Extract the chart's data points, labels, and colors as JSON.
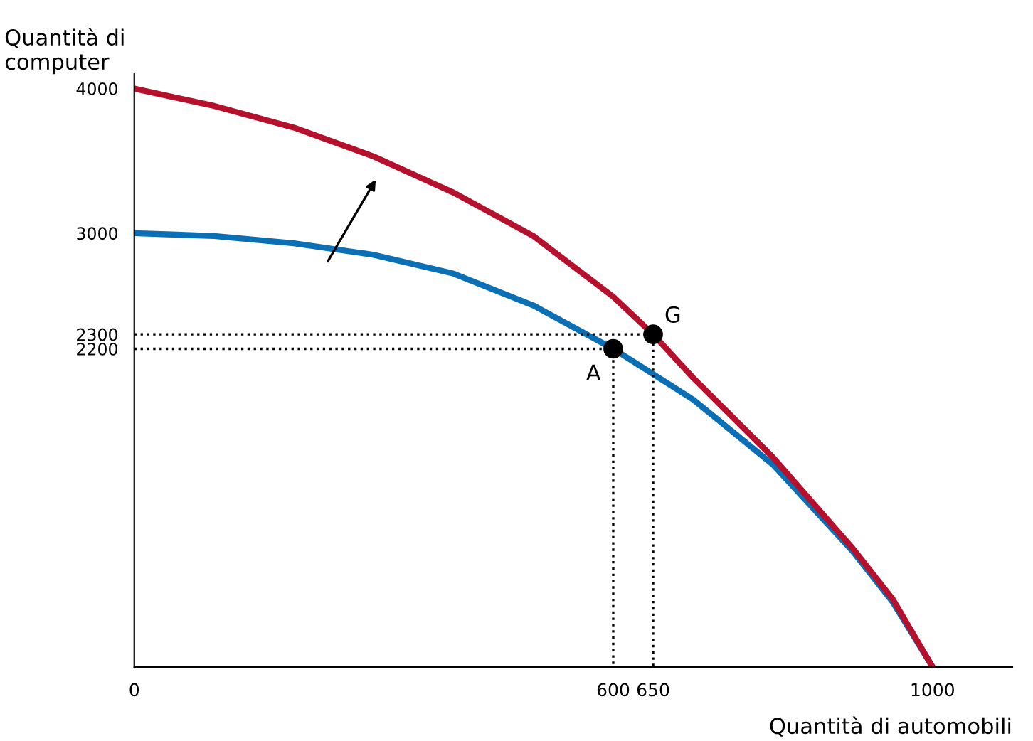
{
  "chart_data": {
    "type": "line",
    "xlabel": "Quantità di automobili",
    "ylabel": "Quantità di\ncomputer",
    "series": [
      {
        "color": "#0a6fb4",
        "x": [
          0,
          100,
          200,
          300,
          400,
          500,
          600,
          700,
          800,
          900,
          950,
          1000
        ],
        "values": [
          3000,
          2980,
          2930,
          2850,
          2720,
          2500,
          2200,
          1850,
          1400,
          800,
          450,
          0
        ]
      },
      {
        "color": "#b5102c",
        "x": [
          0,
          100,
          200,
          300,
          400,
          500,
          600,
          650,
          700,
          800,
          900,
          950,
          1000
        ],
        "values": [
          4000,
          3880,
          3730,
          3530,
          3280,
          2980,
          2560,
          2300,
          2000,
          1450,
          820,
          470,
          0
        ]
      },
      {
        "color": "#000000",
        "line_style": "dotted",
        "x": [
          0,
          600,
          600
        ],
        "values": [
          2200,
          2200,
          0
        ]
      },
      {
        "color": "#000000",
        "line_style": "dotted",
        "x": [
          0,
          650,
          650
        ],
        "values": [
          2300,
          2300,
          0
        ]
      },
      {
        "type": "scatter",
        "color": "#000000",
        "marker": "circle",
        "x": [
          600,
          650
        ],
        "values": [
          2200,
          2300
        ]
      }
    ],
    "annotations": [
      {
        "text": "A",
        "x": 600,
        "y": 2200
      },
      {
        "text": "G",
        "x": 650,
        "y": 2300
      }
    ],
    "xlim": [
      0,
      1100
    ],
    "ylim": [
      0,
      4100
    ],
    "xticks": [
      0,
      600,
      650,
      1000
    ],
    "yticks": [
      2200,
      2300,
      3000,
      4000
    ],
    "grid": false,
    "legend": false,
    "marker": "none",
    "line_style": "solid"
  }
}
